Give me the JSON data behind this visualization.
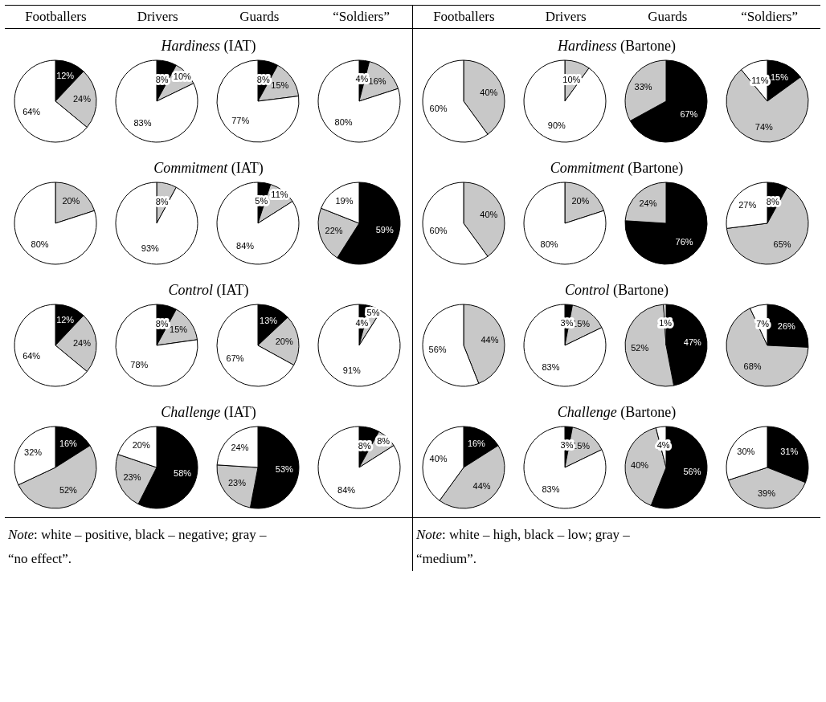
{
  "chart_data": [
    {
      "type": "other",
      "annotations": [
        "Footballers",
        "Drivers",
        "Guards",
        "“Soldiers”",
        "Footballers",
        "Drivers",
        "Guards",
        "“Soldiers”",
        "Hardiness (IAT)",
        "Hardiness (Bartone)",
        "Commitment (IAT)",
        "Commitment (Bartone)",
        "Control (IAT)",
        "Control (Bartone)",
        "Challenge (IAT)",
        "Challenge (Bartone)",
        "Note: white – positive, black – negative; gray – “no effect”.",
        "Note: white – high, black – low; gray – “medium”."
      ]
    },
    {
      "type": "pie",
      "categories": [
        null,
        null,
        null
      ],
      "values": [
        12,
        24,
        64
      ],
      "value_labels": [
        "12%",
        "24%",
        "64%"
      ],
      "colors": [
        "#000000",
        "#c8c8c8",
        "#ffffff"
      ]
    },
    {
      "type": "pie",
      "categories": [
        null,
        null,
        null
      ],
      "values": [
        8,
        10,
        83
      ],
      "value_labels": [
        "8%",
        "10%",
        "83%"
      ],
      "colors": [
        "#000000",
        "#c8c8c8",
        "#ffffff"
      ]
    },
    {
      "type": "pie",
      "categories": [
        null,
        null,
        null
      ],
      "values": [
        8,
        15,
        77
      ],
      "value_labels": [
        "8%",
        "15%",
        "77%"
      ],
      "colors": [
        "#000000",
        "#c8c8c8",
        "#ffffff"
      ]
    },
    {
      "type": "pie",
      "categories": [
        null,
        null,
        null
      ],
      "values": [
        4,
        16,
        80
      ],
      "value_labels": [
        "4%",
        "16%",
        "80%"
      ],
      "colors": [
        "#000000",
        "#c8c8c8",
        "#ffffff"
      ]
    },
    {
      "type": "pie",
      "categories": [
        null,
        null
      ],
      "values": [
        40,
        60
      ],
      "value_labels": [
        "40%",
        "60%"
      ],
      "colors": [
        "#c8c8c8",
        "#ffffff"
      ]
    },
    {
      "type": "pie",
      "categories": [
        null,
        null
      ],
      "values": [
        10,
        90
      ],
      "value_labels": [
        "10%",
        "90%"
      ],
      "colors": [
        "#c8c8c8",
        "#ffffff"
      ]
    },
    {
      "type": "pie",
      "categories": [
        null,
        null
      ],
      "values": [
        67,
        33
      ],
      "value_labels": [
        "67%",
        "33%"
      ],
      "colors": [
        "#000000",
        "#c8c8c8"
      ]
    },
    {
      "type": "pie",
      "categories": [
        null,
        null,
        null
      ],
      "values": [
        15,
        74,
        11
      ],
      "value_labels": [
        "15%",
        "74%",
        "11%"
      ],
      "colors": [
        "#000000",
        "#c8c8c8",
        "#ffffff"
      ]
    },
    {
      "type": "pie",
      "categories": [
        null,
        null
      ],
      "values": [
        20,
        80
      ],
      "value_labels": [
        "20%",
        "80%"
      ],
      "colors": [
        "#c8c8c8",
        "#ffffff"
      ]
    },
    {
      "type": "pie",
      "categories": [
        null,
        null
      ],
      "values": [
        8,
        93
      ],
      "value_labels": [
        "8%",
        "93%"
      ],
      "colors": [
        "#c8c8c8",
        "#ffffff"
      ]
    },
    {
      "type": "pie",
      "categories": [
        null,
        null,
        null
      ],
      "values": [
        5,
        11,
        84
      ],
      "value_labels": [
        "5%",
        "11%",
        "84%"
      ],
      "colors": [
        "#000000",
        "#c8c8c8",
        "#ffffff"
      ]
    },
    {
      "type": "pie",
      "categories": [
        null,
        null,
        null
      ],
      "values": [
        59,
        22,
        19
      ],
      "value_labels": [
        "59%",
        "22%",
        "19%"
      ],
      "colors": [
        "#000000",
        "#c8c8c8",
        "#ffffff"
      ]
    },
    {
      "type": "pie",
      "categories": [
        null,
        null
      ],
      "values": [
        40,
        60
      ],
      "value_labels": [
        "40%",
        "60%"
      ],
      "colors": [
        "#c8c8c8",
        "#ffffff"
      ]
    },
    {
      "type": "pie",
      "categories": [
        null,
        null
      ],
      "values": [
        20,
        80
      ],
      "value_labels": [
        "20%",
        "80%"
      ],
      "colors": [
        "#c8c8c8",
        "#ffffff"
      ]
    },
    {
      "type": "pie",
      "categories": [
        null,
        null
      ],
      "values": [
        76,
        24
      ],
      "value_labels": [
        "76%",
        "24%"
      ],
      "colors": [
        "#000000",
        "#c8c8c8"
      ]
    },
    {
      "type": "pie",
      "categories": [
        null,
        null,
        null
      ],
      "values": [
        8,
        65,
        27
      ],
      "value_labels": [
        "8%",
        "65%",
        "27%"
      ],
      "colors": [
        "#000000",
        "#c8c8c8",
        "#ffffff"
      ]
    },
    {
      "type": "pie",
      "categories": [
        null,
        null,
        null
      ],
      "values": [
        12,
        24,
        64
      ],
      "value_labels": [
        "12%",
        "24%",
        "64%"
      ],
      "colors": [
        "#000000",
        "#c8c8c8",
        "#ffffff"
      ]
    },
    {
      "type": "pie",
      "categories": [
        null,
        null,
        null
      ],
      "values": [
        8,
        15,
        78
      ],
      "value_labels": [
        "8%",
        "15%",
        "78%"
      ],
      "colors": [
        "#000000",
        "#c8c8c8",
        "#ffffff"
      ]
    },
    {
      "type": "pie",
      "categories": [
        null,
        null,
        null
      ],
      "values": [
        13,
        20,
        67
      ],
      "value_labels": [
        "13%",
        "20%",
        "67%"
      ],
      "colors": [
        "#000000",
        "#c8c8c8",
        "#ffffff"
      ]
    },
    {
      "type": "pie",
      "categories": [
        null,
        null,
        null
      ],
      "values": [
        4,
        5,
        91
      ],
      "value_labels": [
        "4%",
        "5%",
        "91%"
      ],
      "colors": [
        "#000000",
        "#c8c8c8",
        "#ffffff"
      ]
    },
    {
      "type": "pie",
      "categories": [
        null,
        null
      ],
      "values": [
        44,
        56
      ],
      "value_labels": [
        "44%",
        "56%"
      ],
      "colors": [
        "#c8c8c8",
        "#ffffff"
      ]
    },
    {
      "type": "pie",
      "categories": [
        null,
        null,
        null
      ],
      "values": [
        3,
        15,
        83
      ],
      "value_labels": [
        "3%",
        "15%",
        "83%"
      ],
      "colors": [
        "#000000",
        "#c8c8c8",
        "#ffffff"
      ]
    },
    {
      "type": "pie",
      "categories": [
        null,
        null,
        null
      ],
      "values": [
        47,
        52,
        1
      ],
      "value_labels": [
        "47%",
        "52%",
        "1%"
      ],
      "colors": [
        "#000000",
        "#c8c8c8",
        "#ffffff"
      ]
    },
    {
      "type": "pie",
      "categories": [
        null,
        null,
        null
      ],
      "values": [
        26,
        68,
        7
      ],
      "value_labels": [
        "26%",
        "68%",
        "7%"
      ],
      "colors": [
        "#000000",
        "#c8c8c8",
        "#ffffff"
      ]
    },
    {
      "type": "pie",
      "categories": [
        null,
        null,
        null
      ],
      "values": [
        16,
        52,
        32
      ],
      "value_labels": [
        "16%",
        "52%",
        "32%"
      ],
      "colors": [
        "#000000",
        "#c8c8c8",
        "#ffffff"
      ]
    },
    {
      "type": "pie",
      "categories": [
        null,
        null,
        null
      ],
      "values": [
        58,
        23,
        20
      ],
      "value_labels": [
        "58%",
        "23%",
        "20%"
      ],
      "colors": [
        "#000000",
        "#c8c8c8",
        "#ffffff"
      ]
    },
    {
      "type": "pie",
      "categories": [
        null,
        null,
        null
      ],
      "values": [
        53,
        23,
        24
      ],
      "value_labels": [
        "53%",
        "23%",
        "24%"
      ],
      "colors": [
        "#000000",
        "#c8c8c8",
        "#ffffff"
      ]
    },
    {
      "type": "pie",
      "categories": [
        null,
        null,
        null
      ],
      "values": [
        8,
        8,
        84
      ],
      "value_labels": [
        "8%",
        "8%",
        "84%"
      ],
      "colors": [
        "#000000",
        "#c8c8c8",
        "#ffffff"
      ]
    },
    {
      "type": "pie",
      "categories": [
        null,
        null,
        null
      ],
      "values": [
        16,
        44,
        40
      ],
      "value_labels": [
        "16%",
        "44%",
        "40%"
      ],
      "colors": [
        "#000000",
        "#c8c8c8",
        "#ffffff"
      ]
    },
    {
      "type": "pie",
      "categories": [
        null,
        null,
        null
      ],
      "values": [
        3,
        15,
        83
      ],
      "value_labels": [
        "3%",
        "15%",
        "83%"
      ],
      "colors": [
        "#000000",
        "#c8c8c8",
        "#ffffff"
      ]
    },
    {
      "type": "pie",
      "categories": [
        null,
        null,
        null
      ],
      "values": [
        56,
        40,
        4
      ],
      "value_labels": [
        "56%",
        "40%",
        "4%"
      ],
      "colors": [
        "#000000",
        "#c8c8c8",
        "#ffffff"
      ]
    },
    {
      "type": "pie",
      "categories": [
        null,
        null,
        null
      ],
      "values": [
        31,
        39,
        30
      ],
      "value_labels": [
        "31%",
        "39%",
        "30%"
      ],
      "colors": [
        "#000000",
        "#c8c8c8",
        "#ffffff"
      ]
    }
  ]
}
